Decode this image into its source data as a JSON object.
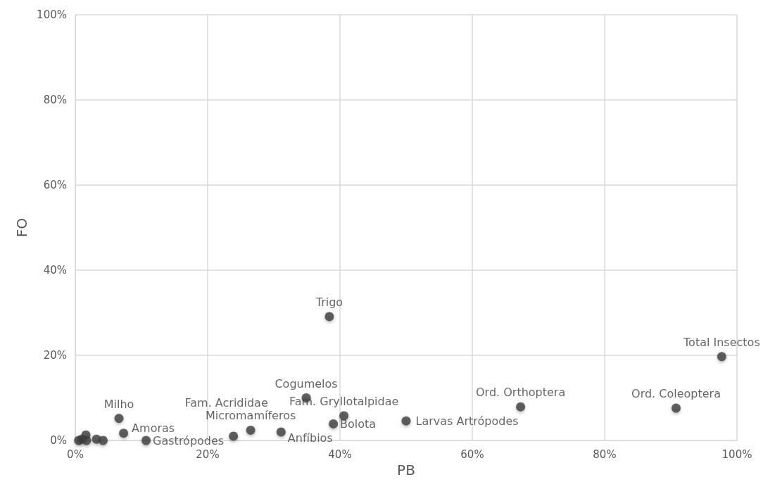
{
  "chart_data": {
    "type": "scatter",
    "xlabel": "PB",
    "ylabel": "FO",
    "x": [
      97.7,
      90.8,
      67.3,
      38.4,
      34.9,
      40.6,
      39.0,
      50.0,
      31.1,
      26.5,
      23.9,
      10.7,
      7.3,
      6.6,
      0.5,
      1.0,
      1.6,
      1.7,
      3.2,
      4.2
    ],
    "series": [
      {
        "color": "#404040",
        "values": [
          19.7,
          7.6,
          7.9,
          29.1,
          10.0,
          5.8,
          3.9,
          4.6,
          2.0,
          2.4,
          1.0,
          0,
          1.7,
          5.2,
          0,
          0.3,
          1.3,
          0,
          0.3,
          0
        ]
      }
    ],
    "annotations": [
      {
        "text": "Total Insectos",
        "x": 97.7,
        "y": 19.7
      },
      {
        "text": "Ord. Coleoptera",
        "x": 90.8,
        "y": 7.6
      },
      {
        "text": "Ord. Orthoptera",
        "x": 67.3,
        "y": 7.9
      },
      {
        "text": "Trigo",
        "x": 38.4,
        "y": 29.1
      },
      {
        "text": "Cogumelos",
        "x": 34.9,
        "y": 10.0
      },
      {
        "text": "Fam. Gryllotalpidae",
        "x": 40.6,
        "y": 5.8
      },
      {
        "text": "Bolota",
        "x": 39.0,
        "y": 3.9
      },
      {
        "text": "Larvas Artrópodes",
        "x": 50.0,
        "y": 4.6
      },
      {
        "text": "Anfíbios",
        "x": 31.1,
        "y": 2.0
      },
      {
        "text": "Micromamíferos",
        "x": 26.5,
        "y": 2.4
      },
      {
        "text": "Fam. Acrididae",
        "x": 23.9,
        "y": 1.0
      },
      {
        "text": "Gastrópodes",
        "x": 10.7,
        "y": 0
      },
      {
        "text": "Amoras",
        "x": 7.3,
        "y": 1.7
      },
      {
        "text": "Milho",
        "x": 6.6,
        "y": 5.2
      }
    ],
    "xlim": [
      0,
      100
    ],
    "ylim": [
      0,
      100
    ],
    "xticks": [
      {
        "value": 0,
        "label": "0%"
      },
      {
        "value": 20,
        "label": "20%"
      },
      {
        "value": 40,
        "label": "40%"
      },
      {
        "value": 60,
        "label": "60%"
      },
      {
        "value": 80,
        "label": "80%"
      },
      {
        "value": 100,
        "label": "100%"
      }
    ],
    "yticks": [
      {
        "value": 0,
        "label": "0%"
      },
      {
        "value": 20,
        "label": "20%"
      },
      {
        "value": 40,
        "label": "40%"
      },
      {
        "value": 60,
        "label": "60%"
      },
      {
        "value": 80,
        "label": "80%"
      },
      {
        "value": 100,
        "label": "100%"
      }
    ],
    "grid": true,
    "marker": "circle"
  }
}
